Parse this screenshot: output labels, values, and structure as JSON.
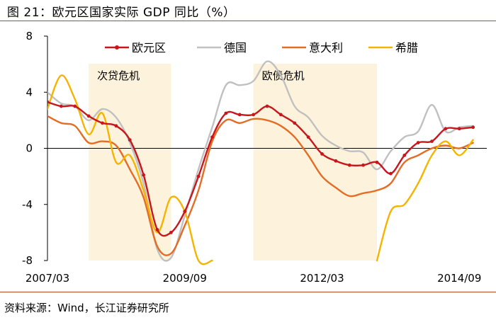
{
  "figure": {
    "title": "图 21：欧元区国家实际 GDP 同比（%）",
    "source": "资料来源：Wind，长江证券研究所"
  },
  "chart_data": {
    "type": "line",
    "title": "欧元区国家实际 GDP 同比（%）",
    "xlabel": "",
    "ylabel": "%",
    "xlim": [
      2007.0,
      2015.0
    ],
    "ylim": [
      -8,
      8
    ],
    "y_ticks": [
      8,
      4,
      0,
      -4,
      -8
    ],
    "y_tick_labels": [
      "8",
      "4",
      "0",
      "-4",
      "-8"
    ],
    "x_ticks": [
      2007.0,
      2009.5,
      2012.0,
      2014.5
    ],
    "x_tick_labels": [
      "2007/03",
      "2009/09",
      "2012/03",
      "2014/09"
    ],
    "grid": false,
    "legend_position": "top",
    "shaded_regions": [
      {
        "label": "次贷危机",
        "x_start": 2007.75,
        "x_end": 2009.25
      },
      {
        "label": "欧债危机",
        "x_start": 2010.75,
        "x_end": 2013.0
      }
    ],
    "series": [
      {
        "name": "欧元区",
        "color": "#c8161d",
        "marker": true,
        "x": [
          2007.0,
          2007.25,
          2007.5,
          2007.75,
          2008.0,
          2008.25,
          2008.5,
          2008.75,
          2009.0,
          2009.25,
          2009.5,
          2009.75,
          2010.0,
          2010.25,
          2010.5,
          2010.75,
          2011.0,
          2011.25,
          2011.5,
          2011.75,
          2012.0,
          2012.25,
          2012.5,
          2012.75,
          2013.0,
          2013.25,
          2013.5,
          2013.75,
          2014.0,
          2014.25,
          2014.5,
          2014.75
        ],
        "y": [
          3.3,
          3.0,
          3.0,
          2.3,
          1.8,
          1.6,
          0.6,
          -1.9,
          -5.8,
          -6.0,
          -4.5,
          -2.0,
          0.8,
          2.5,
          2.4,
          2.4,
          3.0,
          2.4,
          1.8,
          0.8,
          -0.4,
          -0.9,
          -1.2,
          -1.2,
          -1.0,
          -1.8,
          -0.5,
          0.4,
          0.5,
          1.4,
          1.4,
          1.5
        ]
      },
      {
        "name": "德国",
        "color": "#c0c0c0",
        "marker": false,
        "x": [
          2007.0,
          2007.25,
          2007.5,
          2007.75,
          2008.0,
          2008.25,
          2008.5,
          2008.75,
          2009.0,
          2009.25,
          2009.5,
          2009.75,
          2010.0,
          2010.25,
          2010.5,
          2010.75,
          2011.0,
          2011.25,
          2011.5,
          2011.75,
          2012.0,
          2012.25,
          2012.5,
          2012.75,
          2013.0,
          2013.25,
          2013.5,
          2013.75,
          2014.0,
          2014.25,
          2014.5,
          2014.75
        ],
        "y": [
          4.0,
          3.2,
          3.0,
          2.0,
          2.8,
          2.2,
          0.4,
          -2.5,
          -7.2,
          -7.8,
          -4.8,
          -1.5,
          1.5,
          4.5,
          4.5,
          4.8,
          6.2,
          5.2,
          3.0,
          2.2,
          0.9,
          0.2,
          -0.2,
          -0.3,
          -1.5,
          -0.2,
          0.8,
          1.2,
          3.1,
          1.2,
          1.5,
          1.6
        ]
      },
      {
        "name": "意大利",
        "color": "#e46c25",
        "marker": false,
        "x": [
          2007.0,
          2007.25,
          2007.5,
          2007.75,
          2008.0,
          2008.25,
          2008.5,
          2008.75,
          2009.0,
          2009.25,
          2009.5,
          2009.75,
          2010.0,
          2010.25,
          2010.5,
          2010.75,
          2011.0,
          2011.25,
          2011.5,
          2011.75,
          2012.0,
          2012.25,
          2012.5,
          2012.75,
          2013.0,
          2013.25,
          2013.5,
          2013.75,
          2014.0,
          2014.25,
          2014.5,
          2014.75
        ],
        "y": [
          2.3,
          1.8,
          1.6,
          0.4,
          0.5,
          0.2,
          -1.5,
          -3.5,
          -7.0,
          -7.5,
          -5.5,
          -3.0,
          0.5,
          2.0,
          1.8,
          2.1,
          2.0,
          1.6,
          0.8,
          -0.5,
          -2.0,
          -2.8,
          -3.4,
          -3.2,
          -3.0,
          -2.5,
          -1.0,
          -0.5,
          0.0,
          0.2,
          0.0,
          0.4
        ]
      },
      {
        "name": "希腊",
        "color": "#f5b400",
        "marker": false,
        "x": [
          2007.0,
          2007.25,
          2007.5,
          2007.75,
          2008.0,
          2008.25,
          2008.5,
          2008.75,
          2009.0,
          2009.25,
          2009.5,
          2009.75,
          2010.0,
          2013.0,
          2013.25,
          2013.5,
          2013.75,
          2014.0,
          2014.25,
          2014.5,
          2014.75
        ],
        "y": [
          2.8,
          5.2,
          3.5,
          1.0,
          2.5,
          -1.0,
          -0.5,
          -3.0,
          -6.0,
          -3.5,
          -4.5,
          -8.0,
          -8.0,
          -8.0,
          -4.5,
          -4.0,
          -2.5,
          -0.5,
          0.5,
          -0.5,
          0.6
        ]
      }
    ]
  }
}
